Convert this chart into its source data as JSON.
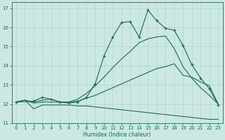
{
  "xlabel": "Humidex (Indice chaleur)",
  "background_color": "#cce8e4",
  "grid_color": "#b0d8d0",
  "line_color": "#1a6b5a",
  "xlim": [
    -0.5,
    23.5
  ],
  "ylim": [
    11.0,
    17.3
  ],
  "yticks": [
    11,
    12,
    13,
    14,
    15,
    16,
    17
  ],
  "xticks": [
    0,
    1,
    2,
    3,
    4,
    5,
    6,
    7,
    8,
    9,
    10,
    11,
    12,
    13,
    14,
    15,
    16,
    17,
    18,
    19,
    20,
    21,
    22,
    23
  ],
  "series": [
    {
      "x": [
        0,
        1,
        2,
        3,
        4,
        5,
        6,
        7,
        8,
        9,
        10,
        11,
        12,
        13,
        14,
        15,
        16,
        17,
        18,
        19,
        20,
        21,
        22,
        23
      ],
      "y": [
        12.1,
        12.2,
        11.75,
        11.95,
        11.95,
        11.95,
        11.95,
        11.9,
        11.9,
        11.85,
        11.8,
        11.75,
        11.7,
        11.65,
        11.6,
        11.55,
        11.5,
        11.45,
        11.4,
        11.35,
        11.3,
        11.25,
        11.2,
        11.2
      ],
      "marker": false
    },
    {
      "x": [
        0,
        1,
        2,
        3,
        4,
        5,
        6,
        7,
        8,
        9,
        10,
        11,
        12,
        13,
        14,
        15,
        16,
        17,
        18,
        19,
        20,
        21,
        22,
        23
      ],
      "y": [
        12.1,
        12.2,
        12.05,
        12.1,
        12.1,
        12.1,
        12.1,
        12.15,
        12.3,
        12.45,
        12.65,
        12.85,
        13.05,
        13.25,
        13.45,
        13.65,
        13.85,
        13.95,
        14.1,
        13.5,
        13.4,
        13.15,
        12.95,
        12.0
      ],
      "marker": false
    },
    {
      "x": [
        0,
        1,
        2,
        3,
        4,
        5,
        6,
        7,
        8,
        9,
        10,
        11,
        12,
        13,
        14,
        15,
        16,
        17,
        18,
        19,
        20,
        21,
        22,
        23
      ],
      "y": [
        12.1,
        12.2,
        12.1,
        12.2,
        12.25,
        12.1,
        12.1,
        12.25,
        12.55,
        12.95,
        13.4,
        13.9,
        14.35,
        14.75,
        15.2,
        15.4,
        15.5,
        15.55,
        14.9,
        13.95,
        13.35,
        12.85,
        12.45,
        12.0
      ],
      "marker": false
    },
    {
      "x": [
        0,
        2,
        3,
        4,
        5,
        6,
        7,
        8,
        9,
        10,
        11,
        12,
        13,
        14,
        15,
        16,
        17,
        18,
        19,
        20,
        21,
        22,
        23
      ],
      "y": [
        12.1,
        12.15,
        12.35,
        12.25,
        12.1,
        12.05,
        12.1,
        12.35,
        13.05,
        14.5,
        15.5,
        16.25,
        16.3,
        15.5,
        16.9,
        16.35,
        15.95,
        15.85,
        15.05,
        14.05,
        13.35,
        12.8,
        11.95
      ],
      "marker": true
    }
  ]
}
